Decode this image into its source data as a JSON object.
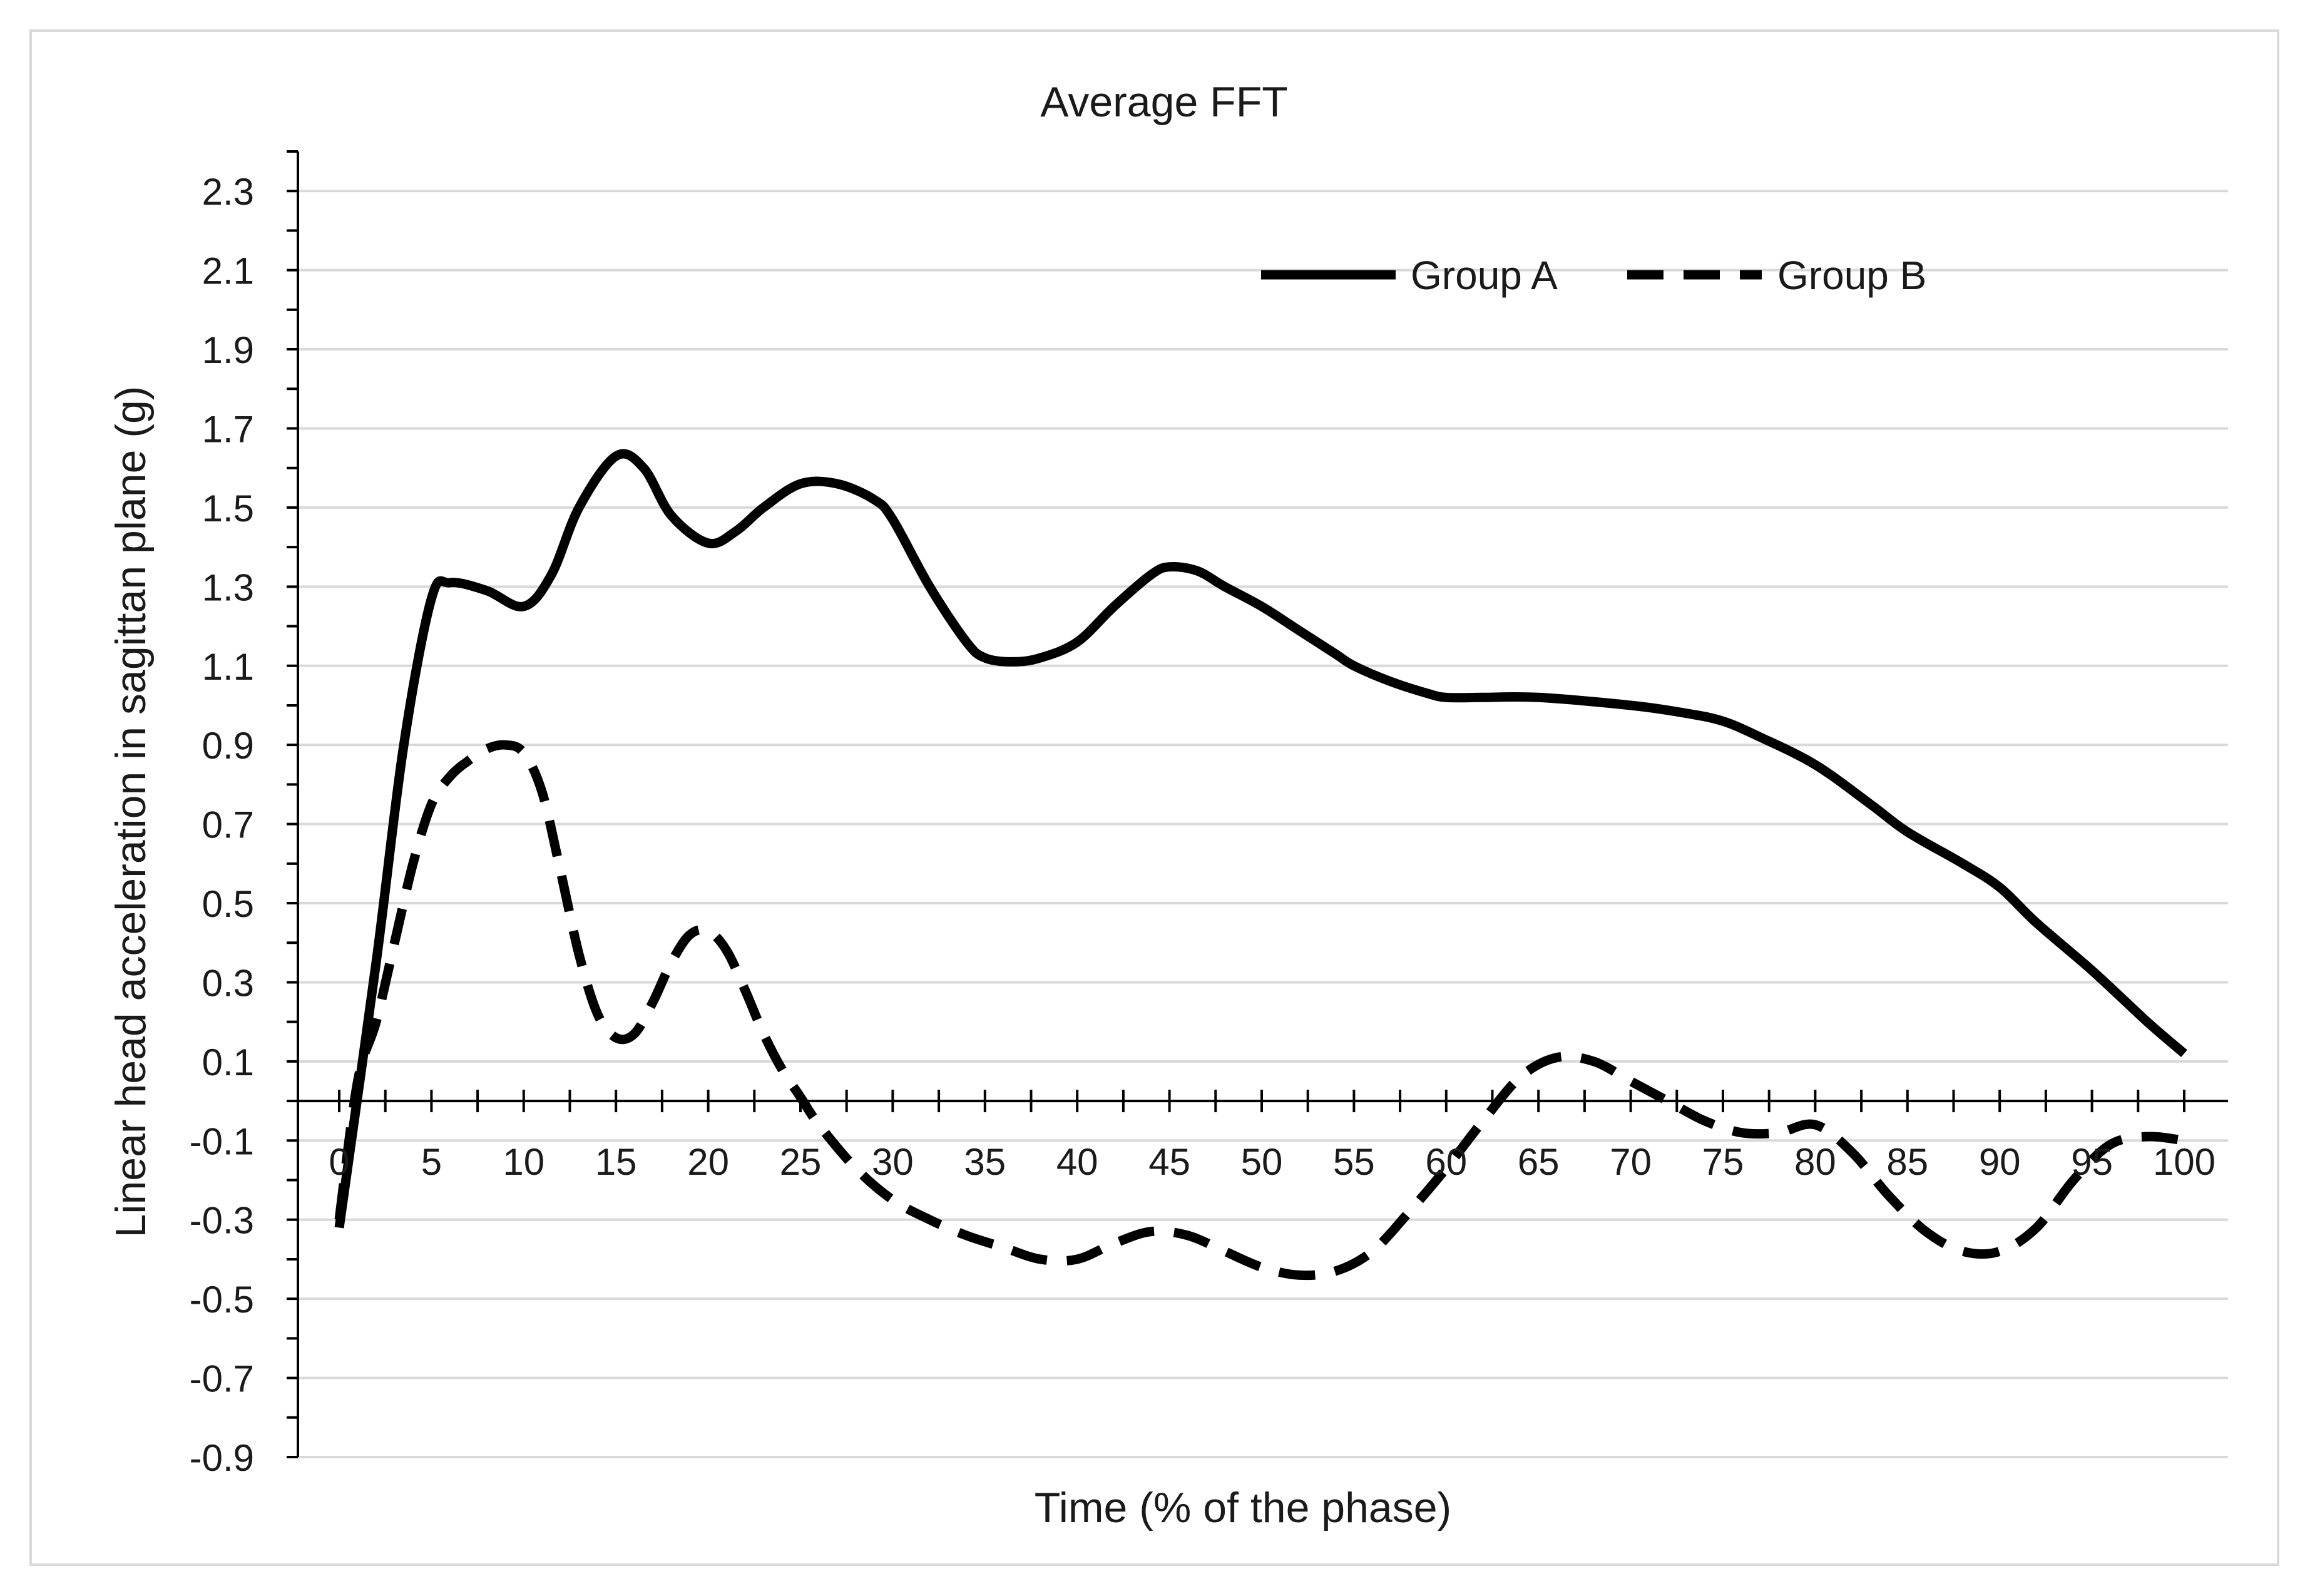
{
  "chart_data": {
    "type": "line",
    "title": "Average FFT",
    "xlabel": "Time (% of the phase)",
    "ylabel": "Linear head acceleration in sagittan plane (g)",
    "xlim": [
      0,
      100
    ],
    "ylim": [
      -0.9,
      2.4
    ],
    "x_ticks": [
      0,
      5,
      10,
      15,
      20,
      25,
      30,
      35,
      40,
      45,
      50,
      55,
      60,
      65,
      70,
      75,
      80,
      85,
      90,
      95,
      100
    ],
    "x_tick_labels": [
      "0",
      "5",
      "10",
      "15",
      "20",
      "25",
      "30",
      "35",
      "40",
      "45",
      "50",
      "55",
      "60",
      "65",
      "70",
      "75",
      "80",
      "85",
      "90",
      "95",
      "100"
    ],
    "y_ticks": [
      -0.9,
      -0.7,
      -0.5,
      -0.3,
      -0.1,
      0.1,
      0.3,
      0.5,
      0.7,
      0.9,
      1.1,
      1.3,
      1.5,
      1.7,
      1.9,
      2.1,
      2.3
    ],
    "y_tick_labels": [
      "-0.9",
      "-0.7",
      "-0.5",
      "-0.3",
      "-0.1",
      "0.1",
      "0.3",
      "0.5",
      "0.7",
      "0.9",
      "1.1",
      "1.3",
      "1.5",
      "1.7",
      "1.9",
      "2.1",
      "2.3"
    ],
    "grid": true,
    "legend_position": "top-right",
    "series": [
      {
        "name": "Group A",
        "style": "solid",
        "color": "#000000",
        "x": [
          0,
          2,
          3.5,
          5,
          6,
          8,
          10,
          11.5,
          13,
          15,
          16.5,
          18,
          20,
          21.5,
          23,
          25,
          27,
          29,
          30,
          32,
          34,
          35,
          36.5,
          38,
          40,
          42,
          44,
          45,
          46.5,
          48,
          50,
          52,
          54,
          55,
          57,
          59,
          60,
          62,
          65,
          70,
          73,
          75,
          77,
          80,
          83,
          85,
          88,
          90,
          92,
          95,
          98,
          100
        ],
        "y": [
          -0.32,
          0.35,
          0.9,
          1.27,
          1.31,
          1.29,
          1.25,
          1.33,
          1.5,
          1.63,
          1.6,
          1.48,
          1.41,
          1.44,
          1.5,
          1.56,
          1.56,
          1.52,
          1.47,
          1.3,
          1.16,
          1.12,
          1.11,
          1.12,
          1.16,
          1.25,
          1.33,
          1.35,
          1.34,
          1.3,
          1.25,
          1.19,
          1.13,
          1.1,
          1.06,
          1.03,
          1.02,
          1.02,
          1.02,
          1.0,
          0.98,
          0.96,
          0.92,
          0.85,
          0.75,
          0.68,
          0.6,
          0.54,
          0.45,
          0.33,
          0.2,
          0.12
        ]
      },
      {
        "name": "Group B",
        "style": "dashed",
        "color": "#000000",
        "x": [
          0,
          1,
          2,
          3,
          4,
          5,
          6,
          7,
          8,
          9,
          10,
          11,
          12,
          13,
          14,
          15,
          16,
          17,
          18,
          19,
          20,
          21,
          22,
          23,
          24,
          25,
          26,
          28,
          30,
          32,
          34,
          36,
          38,
          40,
          42,
          44,
          46,
          48,
          50,
          52,
          54,
          56,
          58,
          60,
          62,
          64,
          66,
          68,
          70,
          72,
          74,
          76,
          78,
          80,
          82,
          84,
          86,
          88,
          90,
          92,
          94,
          96,
          98,
          100
        ],
        "y": [
          -0.3,
          0.05,
          0.2,
          0.4,
          0.6,
          0.75,
          0.82,
          0.86,
          0.89,
          0.9,
          0.88,
          0.78,
          0.58,
          0.37,
          0.22,
          0.16,
          0.17,
          0.25,
          0.35,
          0.42,
          0.43,
          0.38,
          0.28,
          0.17,
          0.08,
          0.01,
          -0.06,
          -0.17,
          -0.25,
          -0.3,
          -0.34,
          -0.37,
          -0.4,
          -0.4,
          -0.36,
          -0.33,
          -0.34,
          -0.38,
          -0.42,
          -0.44,
          -0.43,
          -0.38,
          -0.28,
          -0.17,
          -0.05,
          0.06,
          0.11,
          0.1,
          0.05,
          0.0,
          -0.05,
          -0.08,
          -0.08,
          -0.06,
          -0.13,
          -0.24,
          -0.33,
          -0.38,
          -0.38,
          -0.32,
          -0.2,
          -0.11,
          -0.09,
          -0.1
        ]
      }
    ]
  }
}
